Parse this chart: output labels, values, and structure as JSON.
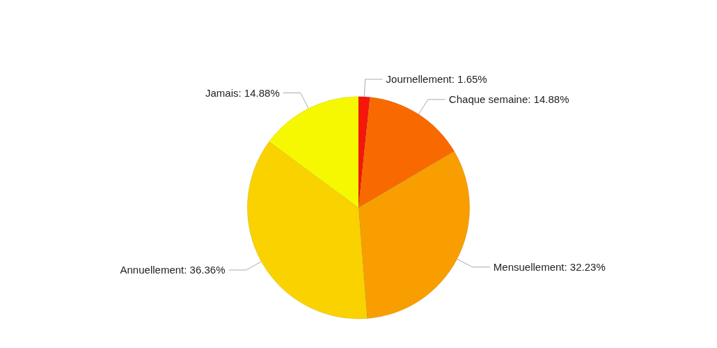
{
  "chart_data": {
    "type": "pie",
    "categories": [
      "Journellement",
      "Chaque semaine",
      "Mensuellement",
      "Annuellement",
      "Jamais"
    ],
    "values": [
      1.65,
      14.88,
      32.23,
      36.36,
      14.88
    ],
    "value_labels": [
      "1.65%",
      "14.88%",
      "32.23%",
      "36.36%",
      "14.88%"
    ],
    "colors": [
      "#f5170b",
      "#f86a00",
      "#f99e00",
      "#f9d200",
      "#f5f800"
    ],
    "legend": false
  }
}
